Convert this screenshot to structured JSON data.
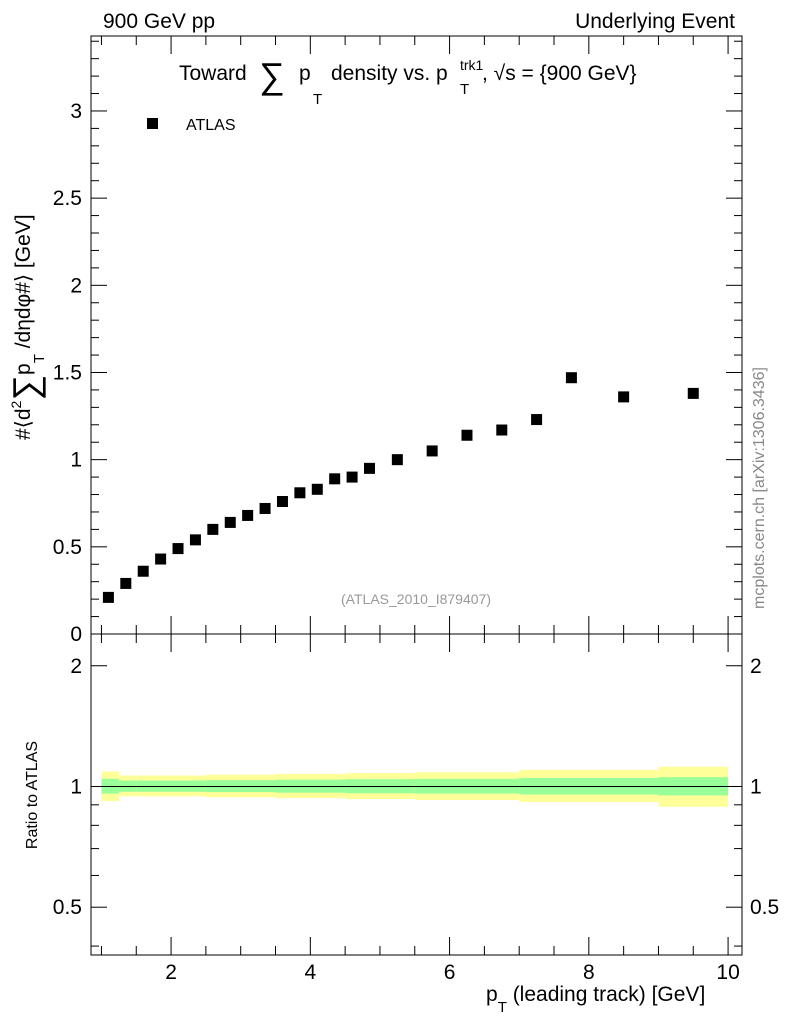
{
  "header": {
    "left": "900 GeV pp",
    "right": "Underlying Event"
  },
  "side_label": "mcplots.cern.ch [arXiv:1306.3436]",
  "chart_data": [
    {
      "type": "scatter",
      "title_prefix": "Toward",
      "title_mid": "p",
      "title_sub1": "T",
      "title_suffix": "density vs. p",
      "title_sup": "trk1",
      "title_sub2": "T",
      "title_tail": ", √s = {900 GeV}",
      "ylabel": "#⟨d² ∑ p_T /dηdφ#⟩ [GeV]",
      "ylabel_parts": {
        "a": "#⟨d",
        "sup": "2",
        "b": "p",
        "sub": "T",
        "c": " /dηdφ#⟩ [GeV]"
      },
      "xlim": [
        0.85,
        10.2
      ],
      "ylim": [
        0,
        3.43
      ],
      "yticks": [
        {
          "v": 0,
          "label": "0"
        },
        {
          "v": 0.5,
          "label": "0.5"
        },
        {
          "v": 1,
          "label": "1"
        },
        {
          "v": 1.5,
          "label": "1.5"
        },
        {
          "v": 2,
          "label": "2"
        },
        {
          "v": 2.5,
          "label": "2.5"
        },
        {
          "v": 3,
          "label": "3"
        }
      ],
      "legend": "ATLAS",
      "watermark": "(ATLAS_2010_I879407)",
      "series": [
        {
          "name": "ATLAS",
          "x": [
            1.1,
            1.35,
            1.6,
            1.85,
            2.1,
            2.35,
            2.6,
            2.85,
            3.1,
            3.35,
            3.6,
            3.85,
            4.1,
            4.35,
            4.6,
            4.85,
            5.25,
            5.75,
            6.25,
            6.75,
            7.25,
            7.75,
            8.5,
            9.5
          ],
          "y": [
            0.21,
            0.29,
            0.36,
            0.43,
            0.49,
            0.54,
            0.6,
            0.64,
            0.68,
            0.72,
            0.76,
            0.81,
            0.83,
            0.89,
            0.9,
            0.95,
            1.0,
            1.05,
            1.14,
            1.17,
            1.23,
            1.47,
            1.36,
            1.38
          ]
        }
      ]
    },
    {
      "type": "area",
      "ylabel": "Ratio to ATLAS",
      "xlabel_main": "p",
      "xlabel_sub": "T",
      "xlabel_tail": " (leading track) [GeV]",
      "xlim": [
        0.85,
        10.2
      ],
      "ylim_log": [
        0.38,
        2.4
      ],
      "yticks": [
        {
          "v": 0.5,
          "label": "0.5"
        },
        {
          "v": 1,
          "label": "1"
        },
        {
          "v": 2,
          "label": "2"
        }
      ],
      "xticks": [
        {
          "v": 2,
          "label": "2"
        },
        {
          "v": 4,
          "label": "4"
        },
        {
          "v": 6,
          "label": "6"
        },
        {
          "v": 8,
          "label": "8"
        },
        {
          "v": 10,
          "label": "10"
        }
      ],
      "reference": 1.0,
      "bins": [
        {
          "x0": 1.0,
          "x1": 1.25,
          "inner": [
            0.96,
            1.045
          ],
          "outer": [
            0.92,
            1.09
          ]
        },
        {
          "x0": 1.25,
          "x1": 1.5,
          "inner": [
            0.97,
            1.035
          ],
          "outer": [
            0.945,
            1.065
          ]
        },
        {
          "x0": 1.5,
          "x1": 2.5,
          "inner": [
            0.97,
            1.035
          ],
          "outer": [
            0.945,
            1.065
          ]
        },
        {
          "x0": 2.5,
          "x1": 3.5,
          "inner": [
            0.968,
            1.037
          ],
          "outer": [
            0.94,
            1.07
          ]
        },
        {
          "x0": 3.5,
          "x1": 4.5,
          "inner": [
            0.965,
            1.04
          ],
          "outer": [
            0.935,
            1.075
          ]
        },
        {
          "x0": 4.5,
          "x1": 5.5,
          "inner": [
            0.962,
            1.043
          ],
          "outer": [
            0.93,
            1.08
          ]
        },
        {
          "x0": 5.5,
          "x1": 7.0,
          "inner": [
            0.96,
            1.045
          ],
          "outer": [
            0.925,
            1.085
          ]
        },
        {
          "x0": 7.0,
          "x1": 9.0,
          "inner": [
            0.955,
            1.05
          ],
          "outer": [
            0.915,
            1.1
          ]
        },
        {
          "x0": 9.0,
          "x1": 10.0,
          "inner": [
            0.95,
            1.055
          ],
          "outer": [
            0.89,
            1.12
          ]
        }
      ],
      "colors": {
        "outer": "#ffff99",
        "inner": "#99ff99",
        "line": "#000000"
      }
    }
  ]
}
